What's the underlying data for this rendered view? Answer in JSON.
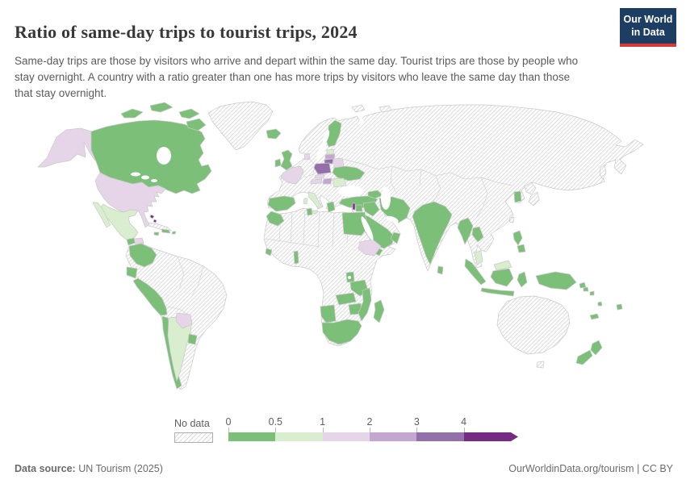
{
  "header": {
    "title": "Ratio of same-day trips to tourist trips, 2024",
    "subtitle": "Same-day trips are those by visitors who arrive and depart within the same day. Tourist trips are those by people who stay overnight. A country with a ratio greater than one has more trips by visitors who leave the same day than those that stay overnight.",
    "logo_line1": "Our World",
    "logo_line2": "in Data",
    "logo_bg": "#1d3d63",
    "logo_accent": "#d73a34"
  },
  "legend": {
    "no_data_label": "No data",
    "ticks": [
      "0",
      "0.5",
      "1",
      "2",
      "3",
      "4"
    ],
    "bins": [
      {
        "label": "0-0.5",
        "color": "#7cbf78"
      },
      {
        "label": "0.5-1",
        "color": "#d8eecf"
      },
      {
        "label": "1-2",
        "color": "#e6d5e8"
      },
      {
        "label": "2-3",
        "color": "#c4a7d0"
      },
      {
        "label": "3-4",
        "color": "#9470ab"
      },
      {
        "label": ">4",
        "color": "#762a83"
      }
    ],
    "no_data_pattern": "diagonal-hatch"
  },
  "footer": {
    "source_label": "Data source:",
    "source_value": " UN Tourism (2025)",
    "right_text": "OurWorldinData.org/tourism | CC BY"
  },
  "chart_data": {
    "type": "choropleth-world-map",
    "title": "Ratio of same-day trips to tourist trips, 2024",
    "unit": "ratio of same-day trips to tourist trips",
    "legend_bins": [
      "0-0.5",
      "0.5-1",
      "1-2",
      "2-3",
      "3-4",
      ">4",
      "no data"
    ],
    "countries": {
      "Canada": "0-0.5",
      "United States": "1-2",
      "Mexico": "0.5-1",
      "Guatemala": "0-0.5",
      "Honduras": "1-2",
      "Nicaragua": "0-0.5",
      "Costa Rica": "0-0.5",
      "Panama": "0-0.5",
      "Cuba": "no data",
      "Bahamas": ">4",
      "Jamaica": "0-0.5",
      "Dominican Republic": "0-0.5",
      "Puerto Rico": "0-0.5",
      "Colombia": "0-0.5",
      "Ecuador": "0-0.5",
      "Peru": "0-0.5",
      "Chile": "0-0.5",
      "Argentina": "0.5-1",
      "Paraguay": "1-2",
      "Uruguay": "0-0.5",
      "Brazil": "no data",
      "Venezuela": "no data",
      "Bolivia": "no data",
      "Greenland": "no data",
      "Iceland": "0-0.5",
      "United Kingdom": "0-0.5",
      "Ireland": "0-0.5",
      "France": "1-2",
      "Spain": "0-0.5",
      "Portugal": "0-0.5",
      "Italy": "0.5-1",
      "Denmark": "1-2",
      "Germany": "no data",
      "Norway": "no data",
      "Sweden": "no data",
      "Finland": "0-0.5",
      "Estonia": "0.5-1",
      "Latvia": "2-3",
      "Lithuania": "3-4",
      "Poland": "3-4",
      "Belarus": "1-2",
      "Ukraine": "0-0.5",
      "Czechia": "1-2",
      "Austria": "1-2",
      "Hungary": "2-3",
      "Romania": "0.5-1",
      "Greece": "0-0.5",
      "Turkey": "0-0.5",
      "Georgia": "0-0.5",
      "Russia": "no data",
      "Kazakhstan": "no data",
      "Mongolia": "no data",
      "China": "no data",
      "Japan": "no data",
      "Taiwan": "no data",
      "South Korea": "0-0.5",
      "Israel": ">4",
      "Jordan": "0-0.5",
      "Iraq": "0-0.5",
      "Iran": "0-0.5",
      "Saudi Arabia": "0-0.5",
      "Yemen": "0-0.5",
      "Oman": "0-0.5",
      "Egypt": "0-0.5",
      "Morocco": "0-0.5",
      "Tunisia": "0-0.5",
      "Algeria": "no data",
      "Libya": "no data",
      "Sudan": "no data",
      "Nigeria": "no data",
      "Sierra Leone": "0-0.5",
      "Benin": "0-0.5",
      "Ethiopia": "1-2",
      "Kenya": "no data",
      "Uganda": "0-0.5",
      "Tanzania": "0-0.5",
      "DR Congo": "no data",
      "Angola": "no data",
      "Zambia": "0-0.5",
      "Zimbabwe": "0-0.5",
      "Mozambique": "0-0.5",
      "Madagascar": "0-0.5",
      "Namibia": "0-0.5",
      "Botswana": "no data",
      "South Africa": "0-0.5",
      "Pakistan": "no data",
      "Afghanistan": "no data",
      "India": "0-0.5",
      "Sri Lanka": "0-0.5",
      "Myanmar": "0-0.5",
      "Laos": "0-0.5",
      "Thailand": "no data",
      "Vietnam": "no data",
      "Cambodia": "no data",
      "Malaysia": "0.5-1",
      "Indonesia": "0-0.5",
      "Philippines": "0-0.5",
      "Papua New Guinea": "0-0.5",
      "Solomon Islands": "0-0.5",
      "Vanuatu": "0-0.5",
      "Fiji": "0-0.5",
      "New Caledonia": "0-0.5",
      "Australia": "no data",
      "New Zealand": "0-0.5"
    }
  }
}
